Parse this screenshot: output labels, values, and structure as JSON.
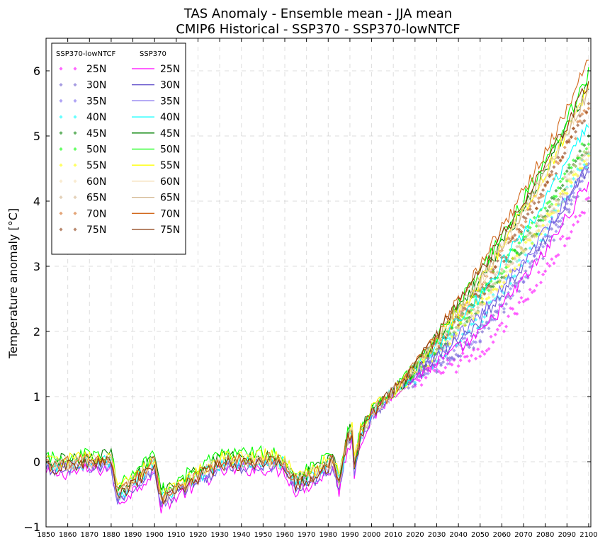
{
  "chart_data": {
    "type": "line",
    "title": "TAS Anomaly - Ensemble mean - JJA mean",
    "subtitle": "CMIP6 Historical - SSP370 - SSP370-lowNTCF",
    "ylabel": "Temperature anomaly [°C]",
    "xlabel": "",
    "xlim": [
      1850,
      2101
    ],
    "ylim": [
      -1,
      6.5
    ],
    "x_ticks": [
      "1850",
      "1860",
      "1870",
      "1880",
      "1890",
      "1900",
      "1910",
      "1920",
      "1930",
      "1940",
      "1950",
      "1960",
      "1970",
      "1980",
      "1990",
      "2000",
      "2010",
      "2020",
      "2030",
      "2040",
      "2050",
      "2060",
      "2070",
      "2080",
      "2090",
      "2100"
    ],
    "y_ticks": [
      "−1",
      "0",
      "1",
      "2",
      "3",
      "4",
      "5",
      "6"
    ],
    "grid": true,
    "legend": {
      "placement": "top-left",
      "lowntcf_header": "SSP370-lowNTCF",
      "ssp370_header": "SSP370"
    },
    "latitudes": [
      "25N",
      "30N",
      "35N",
      "40N",
      "45N",
      "50N",
      "55N",
      "60N",
      "65N",
      "70N",
      "75N"
    ],
    "colors": [
      "#ff00ff",
      "#6a5acd",
      "#7b68ee",
      "#00ffff",
      "#008000",
      "#00ff00",
      "#ffff00",
      "#f5deb3",
      "#d2b48c",
      "#d2691e",
      "#8b3a0f"
    ],
    "anchor_years": [
      1850,
      1880,
      1883,
      1900,
      1903,
      1912,
      1930,
      1950,
      1960,
      1965,
      1975,
      1982,
      1985,
      1989,
      1991,
      1992,
      1995,
      2000,
      2020,
      2050,
      2080,
      2100
    ],
    "anchor_base": [
      -0.05,
      0.05,
      -0.5,
      0.0,
      -0.55,
      -0.35,
      0.0,
      0.05,
      0.0,
      -0.3,
      -0.15,
      0.05,
      -0.3,
      0.4,
      0.45,
      -0.05,
      0.45,
      0.75,
      1.4,
      2.6,
      3.9,
      5.0
    ],
    "ssp370_2100_values": [
      4.3,
      4.55,
      4.6,
      5.2,
      5.8,
      5.95,
      5.75,
      5.7,
      5.7,
      6.15,
      5.85
    ],
    "ssp370_2050_values": [
      1.95,
      2.15,
      2.25,
      2.55,
      2.8,
      2.9,
      2.75,
      2.75,
      2.8,
      3.0,
      2.9
    ],
    "lowntcf_start_year": 2015,
    "lowntcf_2100_values": [
      4.0,
      4.45,
      4.5,
      4.7,
      4.9,
      4.95,
      4.7,
      4.75,
      4.85,
      5.45,
      5.45
    ],
    "lowntcf_2050_values": [
      1.65,
      1.9,
      1.95,
      2.2,
      2.45,
      2.55,
      2.4,
      2.4,
      2.45,
      2.7,
      2.6
    ],
    "historical_offsets": [
      -0.15,
      -0.1,
      -0.08,
      -0.03,
      0.05,
      0.1,
      0.05,
      0.0,
      -0.02,
      0.0,
      -0.05
    ]
  }
}
